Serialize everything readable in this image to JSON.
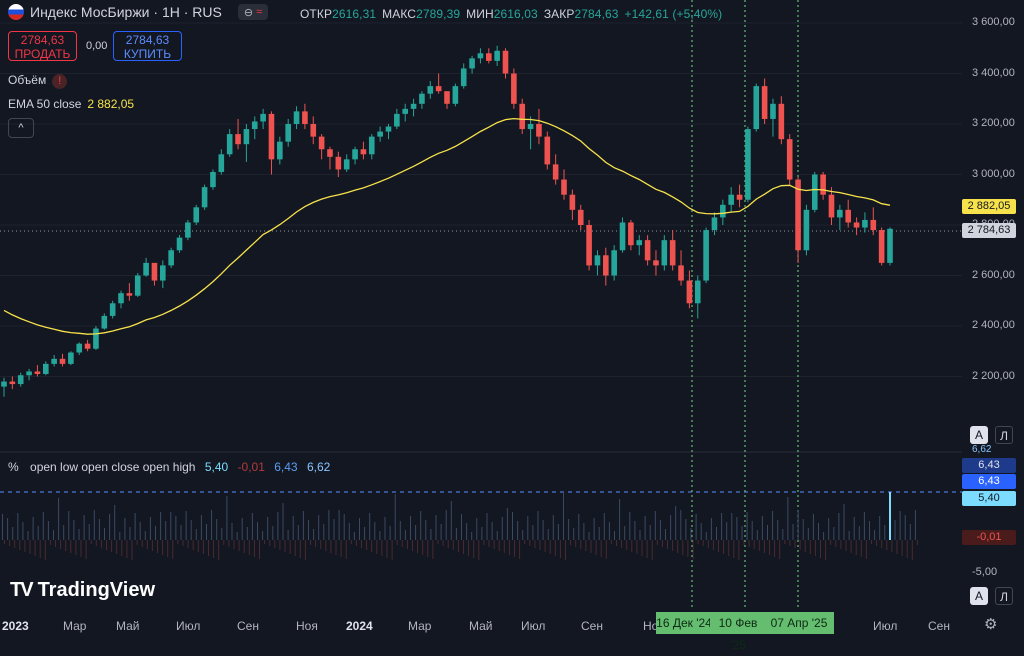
{
  "header": {
    "title": "Индекс МосБиржи · 1H · RUS",
    "pill_glyph_1": "⊖",
    "pill_glyph_2": "≈",
    "ohlc": [
      {
        "label": "ОТКР",
        "value": "2616,31"
      },
      {
        "label": "МАКС",
        "value": "2789,39"
      },
      {
        "label": "МИН",
        "value": "2616,03"
      },
      {
        "label": "ЗАКР",
        "value": "2784,63"
      }
    ],
    "change": "+142,61 (+5,40%)"
  },
  "trade": {
    "sell_price": "2784,63",
    "sell_label": "ПРОДАТЬ",
    "spread": "0,00",
    "buy_price": "2784,63",
    "buy_label": "КУПИТЬ"
  },
  "legends": {
    "volume_label": "Объём",
    "volume_warning": "!",
    "ema_label": "EMA 50 close",
    "ema_value": "2 882,05",
    "collapse_glyph": "^"
  },
  "indicator_legend": {
    "unit": "%",
    "name": "open low open close open high",
    "v1": "5,40",
    "v2": "-0,01",
    "v3": "6,43",
    "v4": "6,62"
  },
  "price_axis": {
    "labels": [
      "3 600,00",
      "3 400,00",
      "3 200,00",
      "3 000,00",
      "2 800,00",
      "2 600,00",
      "2 400,00",
      "2 200,00"
    ],
    "ema_badge": "2 882,05",
    "price_badge": "2 784,63",
    "ema_color": "#f7e24b",
    "price_color": "#d1d4dc"
  },
  "indicator_axis": {
    "top_label": "6,62",
    "badge_a": "6,43",
    "badge_b": "6,43",
    "badge_c": "5,40",
    "badge_neg": "-0,01",
    "bottom_label": "-5,00"
  },
  "time_axis": {
    "labels": [
      {
        "text": "2023",
        "bold": true
      },
      {
        "text": "Мар",
        "bold": false
      },
      {
        "text": "Май",
        "bold": false
      },
      {
        "text": "Июл",
        "bold": false
      },
      {
        "text": "Сен",
        "bold": false
      },
      {
        "text": "Ноя",
        "bold": false
      },
      {
        "text": "2024",
        "bold": true
      },
      {
        "text": "Мар",
        "bold": false
      },
      {
        "text": "Май",
        "bold": false
      },
      {
        "text": "Июл",
        "bold": false
      },
      {
        "text": "Сен",
        "bold": false
      },
      {
        "text": "Ноя",
        "bold": false
      },
      {
        "text": "Июл",
        "bold": false
      },
      {
        "text": "Сен",
        "bold": false
      }
    ],
    "date_badges": [
      "16 Дек '24",
      "10 Фев '25",
      "07 Апр '25"
    ]
  },
  "buttons": {
    "auto_label": "А",
    "log_label": "Л"
  },
  "branding": {
    "logo_mark": "TV",
    "logo_text": "TradingView"
  },
  "colors": {
    "up": "#26a69a",
    "down": "#ef5350",
    "ema": "#f7e24b",
    "background": "#131722",
    "marker": "#65bd6f"
  },
  "chart_data": {
    "type": "candlestick",
    "y_axis_unit": "index points",
    "ylim": [
      2050,
      3680
    ],
    "candles": [
      [
        2160,
        2195,
        2120,
        2180
      ],
      [
        2180,
        2200,
        2150,
        2170
      ],
      [
        2170,
        2215,
        2160,
        2205
      ],
      [
        2205,
        2230,
        2185,
        2220
      ],
      [
        2220,
        2245,
        2200,
        2210
      ],
      [
        2210,
        2260,
        2205,
        2250
      ],
      [
        2250,
        2285,
        2240,
        2270
      ],
      [
        2270,
        2290,
        2240,
        2250
      ],
      [
        2250,
        2300,
        2245,
        2295
      ],
      [
        2295,
        2335,
        2285,
        2330
      ],
      [
        2330,
        2345,
        2300,
        2310
      ],
      [
        2310,
        2400,
        2305,
        2390
      ],
      [
        2390,
        2450,
        2385,
        2440
      ],
      [
        2440,
        2500,
        2430,
        2490
      ],
      [
        2490,
        2540,
        2470,
        2530
      ],
      [
        2530,
        2570,
        2500,
        2520
      ],
      [
        2520,
        2610,
        2515,
        2600
      ],
      [
        2600,
        2670,
        2595,
        2650
      ],
      [
        2650,
        2640,
        2560,
        2580
      ],
      [
        2580,
        2660,
        2550,
        2640
      ],
      [
        2640,
        2710,
        2630,
        2700
      ],
      [
        2700,
        2760,
        2690,
        2750
      ],
      [
        2750,
        2820,
        2740,
        2810
      ],
      [
        2810,
        2880,
        2800,
        2870
      ],
      [
        2870,
        2960,
        2860,
        2950
      ],
      [
        2950,
        3020,
        2940,
        3010
      ],
      [
        3010,
        3100,
        3000,
        3080
      ],
      [
        3080,
        3180,
        3070,
        3160
      ],
      [
        3160,
        3220,
        3100,
        3120
      ],
      [
        3120,
        3200,
        3050,
        3180
      ],
      [
        3180,
        3230,
        3140,
        3210
      ],
      [
        3210,
        3260,
        3180,
        3240
      ],
      [
        3240,
        3250,
        3000,
        3060
      ],
      [
        3060,
        3150,
        3040,
        3130
      ],
      [
        3130,
        3220,
        3110,
        3200
      ],
      [
        3200,
        3270,
        3180,
        3250
      ],
      [
        3250,
        3280,
        3180,
        3200
      ],
      [
        3200,
        3230,
        3120,
        3150
      ],
      [
        3150,
        3160,
        3060,
        3100
      ],
      [
        3100,
        3110,
        3020,
        3070
      ],
      [
        3070,
        3090,
        2990,
        3020
      ],
      [
        3020,
        3080,
        3010,
        3060
      ],
      [
        3060,
        3110,
        3040,
        3100
      ],
      [
        3100,
        3130,
        3060,
        3080
      ],
      [
        3080,
        3160,
        3060,
        3150
      ],
      [
        3150,
        3190,
        3130,
        3170
      ],
      [
        3170,
        3200,
        3140,
        3190
      ],
      [
        3190,
        3260,
        3180,
        3240
      ],
      [
        3240,
        3280,
        3210,
        3260
      ],
      [
        3260,
        3300,
        3230,
        3280
      ],
      [
        3280,
        3330,
        3260,
        3320
      ],
      [
        3320,
        3370,
        3300,
        3350
      ],
      [
        3350,
        3400,
        3320,
        3330
      ],
      [
        3330,
        3320,
        3260,
        3280
      ],
      [
        3280,
        3360,
        3270,
        3350
      ],
      [
        3350,
        3440,
        3340,
        3420
      ],
      [
        3420,
        3470,
        3400,
        3460
      ],
      [
        3460,
        3500,
        3440,
        3480
      ],
      [
        3480,
        3500,
        3440,
        3450
      ],
      [
        3450,
        3510,
        3430,
        3490
      ],
      [
        3490,
        3500,
        3380,
        3400
      ],
      [
        3400,
        3420,
        3260,
        3280
      ],
      [
        3280,
        3300,
        3160,
        3180
      ],
      [
        3180,
        3230,
        3100,
        3200
      ],
      [
        3200,
        3260,
        3120,
        3150
      ],
      [
        3150,
        3170,
        3020,
        3040
      ],
      [
        3040,
        3080,
        2960,
        2980
      ],
      [
        2980,
        3020,
        2900,
        2920
      ],
      [
        2920,
        2940,
        2820,
        2860
      ],
      [
        2860,
        2880,
        2780,
        2800
      ],
      [
        2800,
        2820,
        2620,
        2640
      ],
      [
        2640,
        2700,
        2600,
        2680
      ],
      [
        2680,
        2710,
        2560,
        2600
      ],
      [
        2600,
        2720,
        2580,
        2700
      ],
      [
        2700,
        2830,
        2690,
        2810
      ],
      [
        2810,
        2820,
        2700,
        2720
      ],
      [
        2720,
        2760,
        2680,
        2740
      ],
      [
        2740,
        2760,
        2640,
        2660
      ],
      [
        2660,
        2700,
        2600,
        2640
      ],
      [
        2640,
        2760,
        2620,
        2740
      ],
      [
        2740,
        2780,
        2620,
        2640
      ],
      [
        2640,
        2700,
        2560,
        2580
      ],
      [
        2580,
        2620,
        2470,
        2490
      ],
      [
        2490,
        2600,
        2430,
        2580
      ],
      [
        2580,
        2790,
        2570,
        2780
      ],
      [
        2780,
        2850,
        2760,
        2830
      ],
      [
        2830,
        2900,
        2800,
        2880
      ],
      [
        2880,
        2950,
        2850,
        2920
      ],
      [
        2920,
        2960,
        2870,
        2900
      ],
      [
        2900,
        3190,
        2890,
        3180
      ],
      [
        3180,
        3360,
        3170,
        3350
      ],
      [
        3350,
        3380,
        3200,
        3220
      ],
      [
        3220,
        3300,
        3150,
        3280
      ],
      [
        3280,
        3310,
        3120,
        3140
      ],
      [
        3140,
        3160,
        2960,
        2980
      ],
      [
        2980,
        2990,
        2650,
        2700
      ],
      [
        2700,
        2880,
        2680,
        2860
      ],
      [
        2860,
        3010,
        2850,
        3000
      ],
      [
        3000,
        3010,
        2900,
        2920
      ],
      [
        2920,
        2950,
        2800,
        2830
      ],
      [
        2830,
        2880,
        2780,
        2860
      ],
      [
        2860,
        2900,
        2790,
        2810
      ],
      [
        2810,
        2830,
        2760,
        2790
      ],
      [
        2790,
        2850,
        2770,
        2820
      ],
      [
        2820,
        2870,
        2760,
        2780
      ],
      [
        2780,
        2790,
        2640,
        2650
      ],
      [
        2650,
        2790,
        2640,
        2785
      ]
    ],
    "ema50_label": "EMA 50 close",
    "ema50_last": 2882.05,
    "last_close": 2784.63,
    "marker_dates": [
      "16 Дек '24",
      "10 Фев '25",
      "07 Апр '25"
    ],
    "indicator": {
      "name": "open low open close open high",
      "unit": "%",
      "ylim": [
        -5,
        6.62
      ],
      "reference_line": 5.4
    }
  }
}
